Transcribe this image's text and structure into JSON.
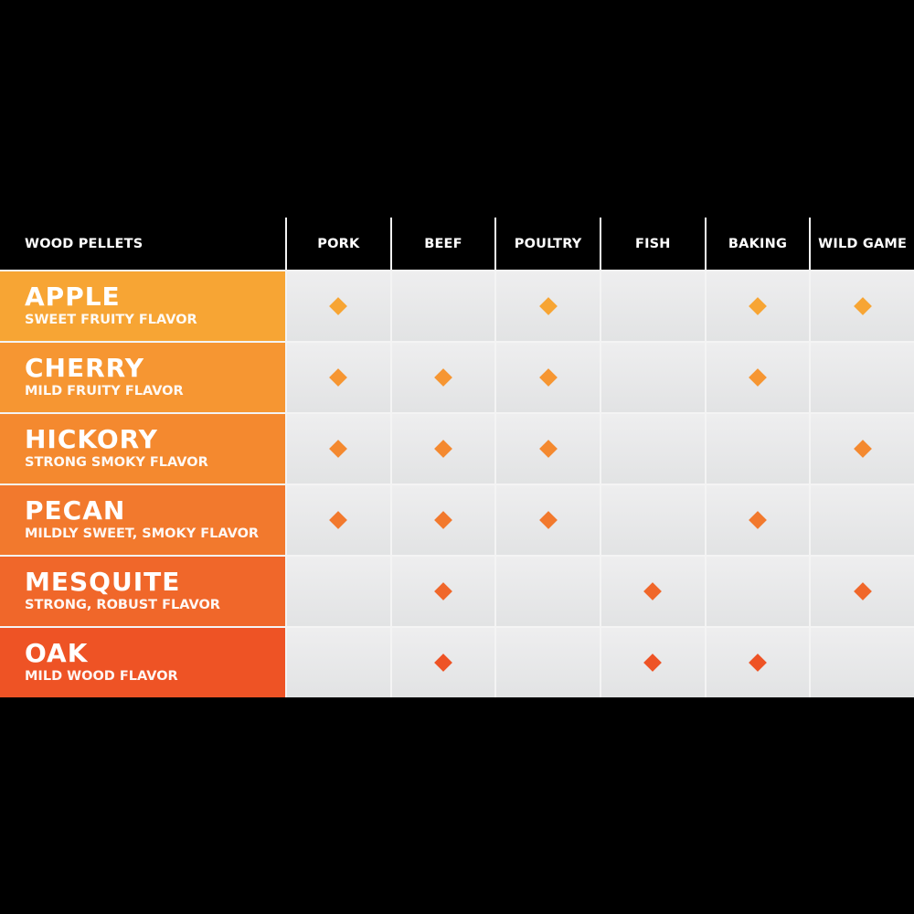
{
  "chart_data": {
    "type": "table",
    "corner_header": "WOOD PELLETS",
    "columns": [
      "PORK",
      "BEEF",
      "POULTRY",
      "FISH",
      "BAKING",
      "WILD GAME"
    ],
    "rows": [
      {
        "name": "APPLE",
        "description": "SWEET FRUITY FLAVOR",
        "color": "#f7a534",
        "marks": [
          1,
          0,
          1,
          0,
          1,
          1
        ]
      },
      {
        "name": "CHERRY",
        "description": "MILD FRUITY FLAVOR",
        "color": "#f69632",
        "marks": [
          1,
          1,
          1,
          0,
          1,
          0
        ]
      },
      {
        "name": "HICKORY",
        "description": "STRONG SMOKY FLAVOR",
        "color": "#f4892f",
        "marks": [
          1,
          1,
          1,
          0,
          0,
          1
        ]
      },
      {
        "name": "PECAN",
        "description": "MILDLY SWEET, SMOKY FLAVOR",
        "color": "#f2792d",
        "marks": [
          1,
          1,
          1,
          0,
          1,
          0
        ]
      },
      {
        "name": "MESQUITE",
        "description": "STRONG, ROBUST FLAVOR",
        "color": "#f0672a",
        "marks": [
          0,
          1,
          0,
          1,
          0,
          1
        ]
      },
      {
        "name": "OAK",
        "description": "MILD WOOD FLAVOR",
        "color": "#ee5325",
        "marks": [
          0,
          1,
          0,
          1,
          1,
          0
        ]
      }
    ],
    "mark_icon": "diamond"
  }
}
